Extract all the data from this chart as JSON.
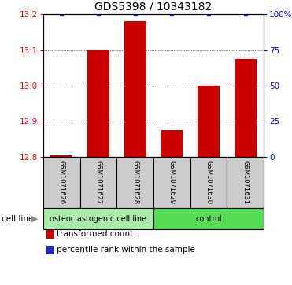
{
  "title": "GDS5398 / 10343182",
  "samples": [
    "GSM1071626",
    "GSM1071627",
    "GSM1071628",
    "GSM1071629",
    "GSM1071630",
    "GSM1071631"
  ],
  "bar_values": [
    12.805,
    13.1,
    13.18,
    12.875,
    13.0,
    13.075
  ],
  "percentile_values": [
    100,
    100,
    100,
    100,
    100,
    100
  ],
  "ylim_left": [
    12.8,
    13.2
  ],
  "ylim_right": [
    0,
    100
  ],
  "yticks_left": [
    12.8,
    12.9,
    13.0,
    13.1,
    13.2
  ],
  "yticks_right": [
    0,
    25,
    50,
    75,
    100
  ],
  "bar_color": "#cc0000",
  "dot_color": "#2222cc",
  "bar_bottom": 12.8,
  "groups": [
    {
      "label": "osteoclastogenic cell line",
      "start": 0,
      "end": 2,
      "color": "#aaeaaa"
    },
    {
      "label": "control",
      "start": 3,
      "end": 5,
      "color": "#55dd55"
    }
  ],
  "cell_line_label": "cell line",
  "legend_entries": [
    {
      "color": "#cc0000",
      "label": "transformed count"
    },
    {
      "color": "#2222cc",
      "label": "percentile rank within the sample"
    }
  ],
  "label_box_color": "#cccccc",
  "title_fontsize": 10,
  "tick_fontsize": 7.5,
  "sample_fontsize": 6,
  "group_fontsize": 7,
  "legend_fontsize": 7.5
}
